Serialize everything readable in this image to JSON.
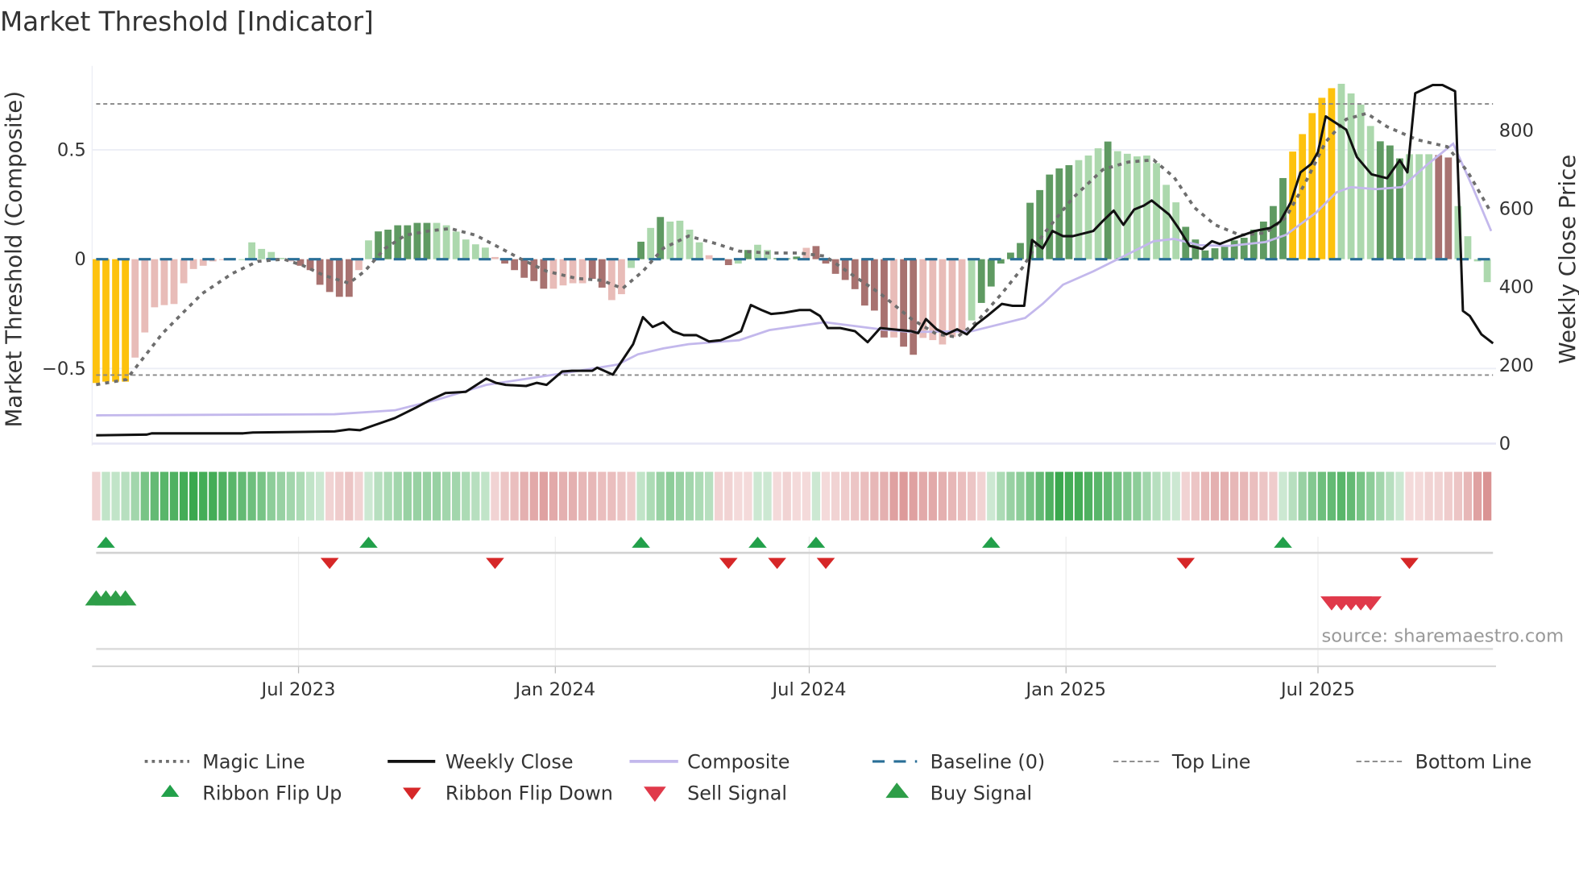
{
  "title": "Market Threshold [Indicator]",
  "source": "source: sharemaestro.com",
  "colors": {
    "yellow": "#fdc20e",
    "dark_green": "#5f9a62",
    "light_green": "#acd8ad",
    "dark_red": "#a87270",
    "light_red": "#e8bcb8",
    "magic": "#6e6e6e",
    "close": "#111111",
    "composite": "#c3b8ec",
    "baseline": "#2a6f97",
    "threshold": "#888888",
    "up": "#22a04a",
    "down": "#d62728",
    "sell": "#e0394a",
    "buy": "#2e9e48"
  },
  "chart_data": {
    "type": "bar",
    "title": "Market Threshold [Indicator]",
    "ylabel": "Market Threshold (Composite)",
    "ylabel_right": "Weekly Close Price",
    "xlim": [
      -0.42,
      143.9
    ],
    "ylim_left": [
      -0.852,
      0.884
    ],
    "ylim_right": [
      -5,
      965
    ],
    "yticks_left": [
      {
        "v": 0.5,
        "label": "0.5"
      },
      {
        "v": 0,
        "label": "0"
      },
      {
        "v": -0.5,
        "label": "−0.5"
      }
    ],
    "yticks_right": [
      {
        "v": 800,
        "label": "800"
      },
      {
        "v": 600,
        "label": "600"
      },
      {
        "v": 400,
        "label": "400"
      },
      {
        "v": 200,
        "label": "200"
      },
      {
        "v": 0,
        "label": "0"
      }
    ],
    "xticks": [
      {
        "i": 20.8,
        "label": "Jul 2023"
      },
      {
        "i": 47.2,
        "label": "Jan 2024"
      },
      {
        "i": 73.3,
        "label": "Jul 2024"
      },
      {
        "i": 99.7,
        "label": "Jan 2025"
      },
      {
        "i": 125.6,
        "label": "Jul 2025"
      }
    ],
    "top_line": 0.71,
    "bottom_line": -0.53,
    "baseline": 0,
    "bars": [
      -0.566,
      -0.56,
      -0.56,
      -0.56,
      -0.45,
      -0.335,
      -0.22,
      -0.21,
      -0.205,
      -0.11,
      -0.045,
      -0.03,
      -0.01,
      0,
      0.005,
      0,
      0.077,
      0.047,
      0.033,
      0.006,
      -0.01,
      -0.03,
      -0.05,
      -0.117,
      -0.15,
      -0.172,
      -0.172,
      -0.05,
      0.086,
      0.127,
      0.135,
      0.155,
      0.155,
      0.166,
      0.166,
      0.166,
      0.155,
      0.126,
      0.09,
      0.068,
      0.053,
      0.01,
      -0.02,
      -0.05,
      -0.085,
      -0.1,
      -0.135,
      -0.135,
      -0.12,
      -0.11,
      -0.11,
      -0.09,
      -0.13,
      -0.187,
      -0.16,
      -0.04,
      0.08,
      0.143,
      0.193,
      0.172,
      0.176,
      0.135,
      0.077,
      0.018,
      -0.003,
      -0.027,
      -0.02,
      0.042,
      0.066,
      0.042,
      0.005,
      0.004,
      0.012,
      0.052,
      0.06,
      -0.02,
      -0.067,
      -0.095,
      -0.137,
      -0.212,
      -0.235,
      -0.358,
      -0.358,
      -0.4,
      -0.437,
      -0.36,
      -0.37,
      -0.39,
      -0.356,
      -0.34,
      -0.28,
      -0.2,
      -0.125,
      -0.02,
      0.03,
      0.074,
      0.258,
      0.316,
      0.387,
      0.415,
      0.43,
      0.453,
      0.474,
      0.507,
      0.538,
      0.494,
      0.482,
      0.47,
      0.474,
      0.439,
      0.34,
      0.26,
      0.148,
      0.09,
      0.04,
      0.05,
      0.06,
      0.086,
      0.098,
      0.135,
      0.172,
      0.243,
      0.371,
      0.492,
      0.572,
      0.668,
      0.738,
      0.782,
      0.802,
      0.758,
      0.707,
      0.609,
      0.539,
      0.52,
      0.461,
      0.48,
      0.48,
      0.48,
      0.476,
      0.465,
      0.243,
      0.105,
      -0.01,
      -0.105
    ],
    "bar_classes": "YYYYRRRRRRRRRRGGGGGGRrrrrrrRGggggggGGGGGGRrrrrrRRRRrrRRGgGgGGGGRrrGgGGgggRrrrrrrrrRrrRRRRRGggggggggggGGGgGGGGGGGgggggggggggYYYYYGGGGgggGGGrr",
    "bar_class_legend": {
      "Y": "yellow",
      "g": "dark_green",
      "G": "light_green",
      "r": "dark_red",
      "R": "light_red"
    },
    "ribbon": [
      -0.2,
      0.25,
      0.25,
      0.3,
      0.4,
      0.6,
      0.7,
      0.75,
      0.8,
      0.85,
      0.9,
      0.85,
      0.85,
      0.8,
      0.75,
      0.7,
      0.65,
      0.6,
      0.5,
      0.45,
      0.4,
      0.35,
      0.25,
      0.2,
      -0.2,
      -0.25,
      -0.3,
      -0.2,
      0.2,
      0.3,
      0.35,
      0.4,
      0.45,
      0.45,
      0.45,
      0.45,
      0.4,
      0.4,
      0.35,
      0.3,
      0.25,
      -0.2,
      -0.3,
      -0.35,
      -0.45,
      -0.5,
      -0.55,
      -0.5,
      -0.45,
      -0.45,
      -0.4,
      -0.4,
      -0.35,
      -0.35,
      -0.3,
      -0.25,
      0.25,
      0.35,
      0.45,
      0.5,
      0.45,
      0.4,
      0.35,
      0.3,
      -0.2,
      -0.2,
      -0.15,
      -0.15,
      0.2,
      0.2,
      -0.15,
      -0.2,
      -0.15,
      -0.15,
      0.2,
      -0.15,
      -0.2,
      -0.25,
      -0.3,
      -0.35,
      -0.4,
      -0.45,
      -0.55,
      -0.6,
      -0.55,
      -0.5,
      -0.5,
      -0.45,
      -0.4,
      -0.35,
      -0.3,
      -0.2,
      0.2,
      0.35,
      0.45,
      0.5,
      0.6,
      0.7,
      0.8,
      0.9,
      0.85,
      0.85,
      0.8,
      0.75,
      0.7,
      0.6,
      0.55,
      0.5,
      0.4,
      0.3,
      0.25,
      0.2,
      -0.2,
      -0.3,
      -0.4,
      -0.45,
      -0.45,
      -0.4,
      -0.4,
      -0.35,
      -0.3,
      -0.25,
      0.2,
      0.3,
      0.45,
      0.55,
      0.65,
      0.7,
      0.75,
      0.7,
      0.6,
      0.5,
      0.4,
      0.3,
      0.2,
      -0.15,
      -0.15,
      -0.2,
      -0.2,
      -0.25,
      -0.3,
      -0.4,
      -0.55,
      -0.65
    ],
    "magic_line": [
      [
        0,
        -0.574
      ],
      [
        3.1,
        -0.55
      ],
      [
        4.7,
        -0.46
      ],
      [
        6.8,
        -0.34
      ],
      [
        8.8,
        -0.25
      ],
      [
        10.9,
        -0.157
      ],
      [
        14,
        -0.065
      ],
      [
        16.6,
        -0.01
      ],
      [
        19.3,
        0
      ],
      [
        21.3,
        -0.03
      ],
      [
        23.4,
        -0.074
      ],
      [
        26,
        -0.11
      ],
      [
        27.6,
        -0.055
      ],
      [
        29.7,
        0.05
      ],
      [
        31.8,
        0.11
      ],
      [
        34.3,
        0.13
      ],
      [
        36.4,
        0.14
      ],
      [
        39,
        0.11
      ],
      [
        41.6,
        0.05
      ],
      [
        43.7,
        0
      ],
      [
        46.3,
        -0.055
      ],
      [
        49.4,
        -0.088
      ],
      [
        52,
        -0.097
      ],
      [
        54.1,
        -0.134
      ],
      [
        56.2,
        -0.055
      ],
      [
        58.3,
        0.05
      ],
      [
        60.9,
        0.106
      ],
      [
        63.5,
        0.074
      ],
      [
        66.1,
        0.037
      ],
      [
        69.2,
        0.028
      ],
      [
        72.3,
        0.028
      ],
      [
        74.9,
        0.014
      ],
      [
        77.5,
        -0.065
      ],
      [
        80.6,
        -0.157
      ],
      [
        83.8,
        -0.273
      ],
      [
        86.4,
        -0.343
      ],
      [
        88.5,
        -0.356
      ],
      [
        90.5,
        -0.287
      ],
      [
        93.1,
        -0.157
      ],
      [
        95.2,
        -0.04
      ],
      [
        97.3,
        0.11
      ],
      [
        100.4,
        0.28
      ],
      [
        103.5,
        0.41
      ],
      [
        106.1,
        0.444
      ],
      [
        108.7,
        0.454
      ],
      [
        110.8,
        0.375
      ],
      [
        112.9,
        0.236
      ],
      [
        115,
        0.157
      ],
      [
        117.6,
        0.11
      ],
      [
        120.2,
        0.12
      ],
      [
        122.3,
        0.19
      ],
      [
        124.3,
        0.35
      ],
      [
        126.4,
        0.537
      ],
      [
        128.5,
        0.64
      ],
      [
        130.6,
        0.667
      ],
      [
        132.7,
        0.606
      ],
      [
        135.8,
        0.546
      ],
      [
        138.9,
        0.514
      ],
      [
        141,
        0.4
      ],
      [
        143.4,
        0.213
      ]
    ],
    "weekly_close": [
      [
        0,
        21
      ],
      [
        5.2,
        23
      ],
      [
        5.7,
        26
      ],
      [
        15.1,
        26
      ],
      [
        16.1,
        28
      ],
      [
        24.5,
        31
      ],
      [
        26,
        36
      ],
      [
        27.1,
        34
      ],
      [
        28.6,
        47
      ],
      [
        30.7,
        65
      ],
      [
        32.8,
        91
      ],
      [
        34.3,
        111
      ],
      [
        35.9,
        129
      ],
      [
        38,
        132
      ],
      [
        40.1,
        166
      ],
      [
        41.1,
        155
      ],
      [
        42.1,
        150
      ],
      [
        44.2,
        147
      ],
      [
        45.3,
        155
      ],
      [
        46.3,
        150
      ],
      [
        47.9,
        184
      ],
      [
        48.9,
        186
      ],
      [
        51,
        186
      ],
      [
        51.5,
        194
      ],
      [
        53.1,
        176
      ],
      [
        55.2,
        254
      ],
      [
        56.2,
        323
      ],
      [
        57.2,
        298
      ],
      [
        58.3,
        310
      ],
      [
        59.3,
        287
      ],
      [
        60.4,
        277
      ],
      [
        61.7,
        277
      ],
      [
        63,
        261
      ],
      [
        64.2,
        264
      ],
      [
        65.2,
        274
      ],
      [
        66.3,
        287
      ],
      [
        67.3,
        354
      ],
      [
        68.4,
        341
      ],
      [
        69.4,
        331
      ],
      [
        70.7,
        334
      ],
      [
        72.3,
        341
      ],
      [
        73.4,
        341
      ],
      [
        74.4,
        326
      ],
      [
        75.2,
        295
      ],
      [
        76.5,
        295
      ],
      [
        78.0,
        287
      ],
      [
        79.3,
        259
      ],
      [
        80.6,
        295
      ],
      [
        83.8,
        287
      ],
      [
        84.5,
        282
      ],
      [
        85.3,
        318
      ],
      [
        86.4,
        292
      ],
      [
        87.4,
        279
      ],
      [
        88.5,
        292
      ],
      [
        89.5,
        279
      ],
      [
        90.5,
        305
      ],
      [
        91.6,
        326
      ],
      [
        93.1,
        357
      ],
      [
        94.2,
        352
      ],
      [
        95.4,
        352
      ],
      [
        96.2,
        520
      ],
      [
        97.3,
        499
      ],
      [
        98.3,
        543
      ],
      [
        99.4,
        530
      ],
      [
        100.4,
        530
      ],
      [
        102.5,
        543
      ],
      [
        103.5,
        569
      ],
      [
        104.6,
        595
      ],
      [
        105.6,
        559
      ],
      [
        106.7,
        598
      ],
      [
        107.7,
        608
      ],
      [
        108.5,
        621
      ],
      [
        110.3,
        585
      ],
      [
        111.3,
        549
      ],
      [
        112.4,
        505
      ],
      [
        113.7,
        497
      ],
      [
        114.7,
        517
      ],
      [
        115.5,
        510
      ],
      [
        117.6,
        530
      ],
      [
        119.1,
        543
      ],
      [
        120.7,
        551
      ],
      [
        121.7,
        567
      ],
      [
        122.8,
        616
      ],
      [
        123.8,
        693
      ],
      [
        124.9,
        714
      ],
      [
        125.6,
        745
      ],
      [
        126.4,
        836
      ],
      [
        128.5,
        802
      ],
      [
        129.6,
        732
      ],
      [
        131.1,
        688
      ],
      [
        132.7,
        678
      ],
      [
        134,
        724
      ],
      [
        134.8,
        693
      ],
      [
        135.6,
        895
      ],
      [
        137.4,
        916
      ],
      [
        138.4,
        916
      ],
      [
        139.7,
        900
      ],
      [
        140.5,
        339
      ],
      [
        141.2,
        326
      ],
      [
        142.4,
        279
      ],
      [
        143.6,
        256
      ]
    ],
    "composite": [
      [
        0,
        72
      ],
      [
        24.5,
        75
      ],
      [
        30.7,
        85
      ],
      [
        34.9,
        111
      ],
      [
        40.1,
        150
      ],
      [
        48.4,
        181
      ],
      [
        53.6,
        202
      ],
      [
        55.7,
        228
      ],
      [
        58.3,
        243
      ],
      [
        60.9,
        254
      ],
      [
        66.1,
        264
      ],
      [
        69.2,
        290
      ],
      [
        74.9,
        310
      ],
      [
        80.6,
        292
      ],
      [
        83.8,
        285
      ],
      [
        90,
        287
      ],
      [
        95.5,
        321
      ],
      [
        97.3,
        357
      ],
      [
        99.4,
        406
      ],
      [
        102.5,
        440
      ],
      [
        104.6,
        466
      ],
      [
        106.7,
        492
      ],
      [
        108.7,
        517
      ],
      [
        110.8,
        523
      ],
      [
        113.4,
        507
      ],
      [
        116.5,
        505
      ],
      [
        120.2,
        515
      ],
      [
        122.3,
        533
      ],
      [
        125.4,
        590
      ],
      [
        127.5,
        642
      ],
      [
        129.0,
        655
      ],
      [
        131.6,
        650
      ],
      [
        134.2,
        655
      ],
      [
        136.8,
        712
      ],
      [
        139.5,
        766
      ],
      [
        141.5,
        655
      ],
      [
        143.4,
        543
      ]
    ],
    "ribbon_flip_up": [
      1,
      28,
      56,
      68,
      74,
      92,
      122
    ],
    "ribbon_flip_down": [
      24,
      41,
      65,
      70,
      75,
      112,
      135
    ],
    "buy_signal": [
      0,
      1,
      2,
      3
    ],
    "sell_signal": [
      127,
      128,
      129,
      130,
      131
    ],
    "legend": {
      "magic_line": "Magic Line",
      "weekly_close": "Weekly Close",
      "composite": "Composite",
      "baseline": "Baseline (0)",
      "top_line": "Top Line",
      "bottom_line": "Bottom Line",
      "ribbon_flip_up": "Ribbon Flip Up",
      "ribbon_flip_down": "Ribbon Flip Down",
      "sell_signal": "Sell Signal",
      "buy_signal": "Buy Signal"
    },
    "legend_position": "bottom"
  }
}
